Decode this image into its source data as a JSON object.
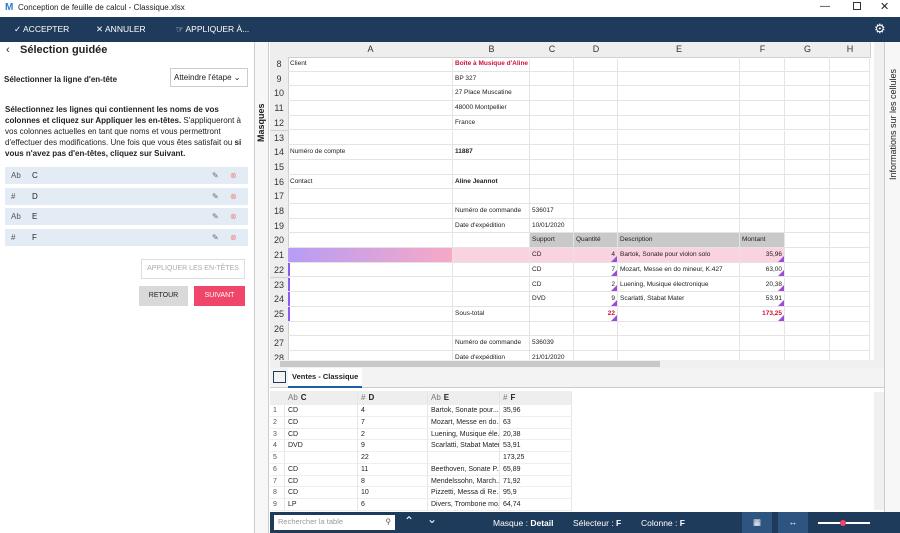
{
  "window": {
    "title": "Conception de feuille de calcul - Classique.xlsx"
  },
  "toolbar": {
    "accept": "ACCEPTER",
    "cancel": "ANNULER",
    "apply_to": "APPLIQUER À..."
  },
  "left_panel": {
    "title": "Sélection guidée",
    "step_label": "Sélectionner la ligne d'en-tête",
    "step_dropdown": "Atteindre l'étape",
    "instructions": [
      {
        "text": "Sélectionnez les lignes qui contiennent les noms de vos colonnes et cliquez sur Appliquer les en-têtes.",
        "bold": true
      },
      {
        "text": " S'appliqueront à vos colonnes actuelles en tant que noms et vous permettront d'effectuer des modifications. Une fois que vous êtes satisfait ou ",
        "bold": false
      },
      {
        "text": "si vous n'avez pas d'en-têtes, cliquez sur Suivant.",
        "bold": true
      }
    ],
    "columns": [
      {
        "icon": "Ab",
        "name": "C"
      },
      {
        "icon": "#",
        "name": "D"
      },
      {
        "icon": "Ab",
        "name": "E"
      },
      {
        "icon": "#",
        "name": "F"
      }
    ],
    "apply_headers": "APPLIQUER LES EN-TÊTES",
    "back": "RETOUR",
    "next": "SUIVANT"
  },
  "side_tabs": {
    "left": "Masques",
    "right": "Informations sur les cellules"
  },
  "grid": {
    "columns": [
      "A",
      "B",
      "C",
      "D",
      "E",
      "F",
      "G",
      "H"
    ],
    "rows": [
      {
        "num": "8",
        "cells": [
          "Client",
          "Boîte à Musique d'Aline",
          null,
          null,
          null,
          null
        ],
        "bold": [
          1
        ],
        "red": [
          1
        ]
      },
      {
        "num": "9",
        "cells": [
          null,
          "BP 327",
          null,
          null,
          null,
          null
        ]
      },
      {
        "num": "10",
        "cells": [
          null,
          "27 Place Muscatine",
          null,
          null,
          null,
          null
        ]
      },
      {
        "num": "11",
        "cells": [
          null,
          "48000 Montpellier",
          null,
          null,
          null,
          null
        ]
      },
      {
        "num": "12",
        "cells": [
          null,
          "France",
          null,
          null,
          null,
          null
        ]
      },
      {
        "num": "13",
        "cells": [
          null,
          null,
          null,
          null,
          null,
          null
        ]
      },
      {
        "num": "14",
        "cells": [
          "Numéro de compte",
          "11887",
          null,
          null,
          null,
          null
        ],
        "bold": [
          1
        ]
      },
      {
        "num": "15",
        "cells": [
          null,
          null,
          null,
          null,
          null,
          null
        ]
      },
      {
        "num": "16",
        "cells": [
          "Contact",
          "Aline Jeannot",
          null,
          null,
          null,
          null
        ],
        "bold": [
          1
        ]
      },
      {
        "num": "17",
        "cells": [
          null,
          null,
          null,
          null,
          null,
          null
        ]
      },
      {
        "num": "18",
        "cells": [
          null,
          "Numéro de commande",
          "536017",
          null,
          null,
          null
        ]
      },
      {
        "num": "19",
        "cells": [
          null,
          "Date d'expédition",
          "10/01/2020",
          null,
          null,
          null
        ]
      },
      {
        "num": "20",
        "cells": [
          null,
          null,
          "Support",
          "Quantité",
          "Description",
          "Montant"
        ],
        "style": "header"
      },
      {
        "num": "21",
        "cells": [
          null,
          null,
          "CD",
          "4",
          "Bartok, Sonate pour violon solo",
          "35,96"
        ],
        "style": "selected",
        "right": [
          3,
          5
        ]
      },
      {
        "num": "22",
        "cells": [
          null,
          null,
          "CD",
          "7",
          "Mozart, Messe en do mineur, K.427",
          "63,00"
        ],
        "right": [
          3,
          5
        ]
      },
      {
        "num": "23",
        "cells": [
          null,
          null,
          "CD",
          "2",
          "Luening, Musique électronique",
          "20,38"
        ],
        "right": [
          3,
          5
        ]
      },
      {
        "num": "24",
        "cells": [
          null,
          null,
          "DVD",
          "9",
          "Scarlatti, Stabat Mater",
          "53,91"
        ],
        "right": [
          3,
          5
        ]
      },
      {
        "num": "25",
        "cells": [
          null,
          "Sous-total",
          null,
          "22",
          null,
          "173,25"
        ],
        "right": [
          3,
          5
        ],
        "bold": [
          3,
          5
        ],
        "red": [
          3,
          5
        ]
      },
      {
        "num": "26",
        "cells": [
          null,
          null,
          null,
          null,
          null,
          null
        ]
      },
      {
        "num": "27",
        "cells": [
          null,
          "Numéro de commande",
          "536039",
          null,
          null,
          null
        ]
      },
      {
        "num": "28",
        "cells": [
          null,
          "Date d'expédition",
          "21/01/2020",
          null,
          null,
          null
        ]
      }
    ]
  },
  "sheet_tab": "Ventes - Classique",
  "table": {
    "columns": [
      {
        "icon": "Ab",
        "name": "C"
      },
      {
        "icon": "#",
        "name": "D"
      },
      {
        "icon": "Ab",
        "name": "E"
      },
      {
        "icon": "#",
        "name": "F"
      }
    ],
    "rows": [
      [
        "1",
        "CD",
        "4",
        "Bartok, Sonate pour...",
        "35,96"
      ],
      [
        "2",
        "CD",
        "7",
        "Mozart, Messe en do...",
        "63"
      ],
      [
        "3",
        "CD",
        "2",
        "Luening, Musique éle...",
        "20,38"
      ],
      [
        "4",
        "DVD",
        "9",
        "Scarlatti, Stabat Mater",
        "53,91"
      ],
      [
        "5",
        null,
        "22",
        null,
        "173,25"
      ],
      [
        "6",
        "CD",
        "11",
        "Beethoven, Sonate P...",
        "65,89"
      ],
      [
        "7",
        "CD",
        "8",
        "Mendelssohn, March...",
        "71,92"
      ],
      [
        "8",
        "CD",
        "10",
        "Pizzetti, Messa di Re...",
        "95,9"
      ],
      [
        "9",
        "LP",
        "6",
        "Divers, Trombone mo...",
        "64,74"
      ]
    ]
  },
  "status": {
    "search": "Rechercher la table",
    "mask_label": "Masque :",
    "mask": "Detail",
    "selector_label": "Sélecteur :",
    "selector": "F",
    "column_label": "Colonne :",
    "column": "F"
  }
}
